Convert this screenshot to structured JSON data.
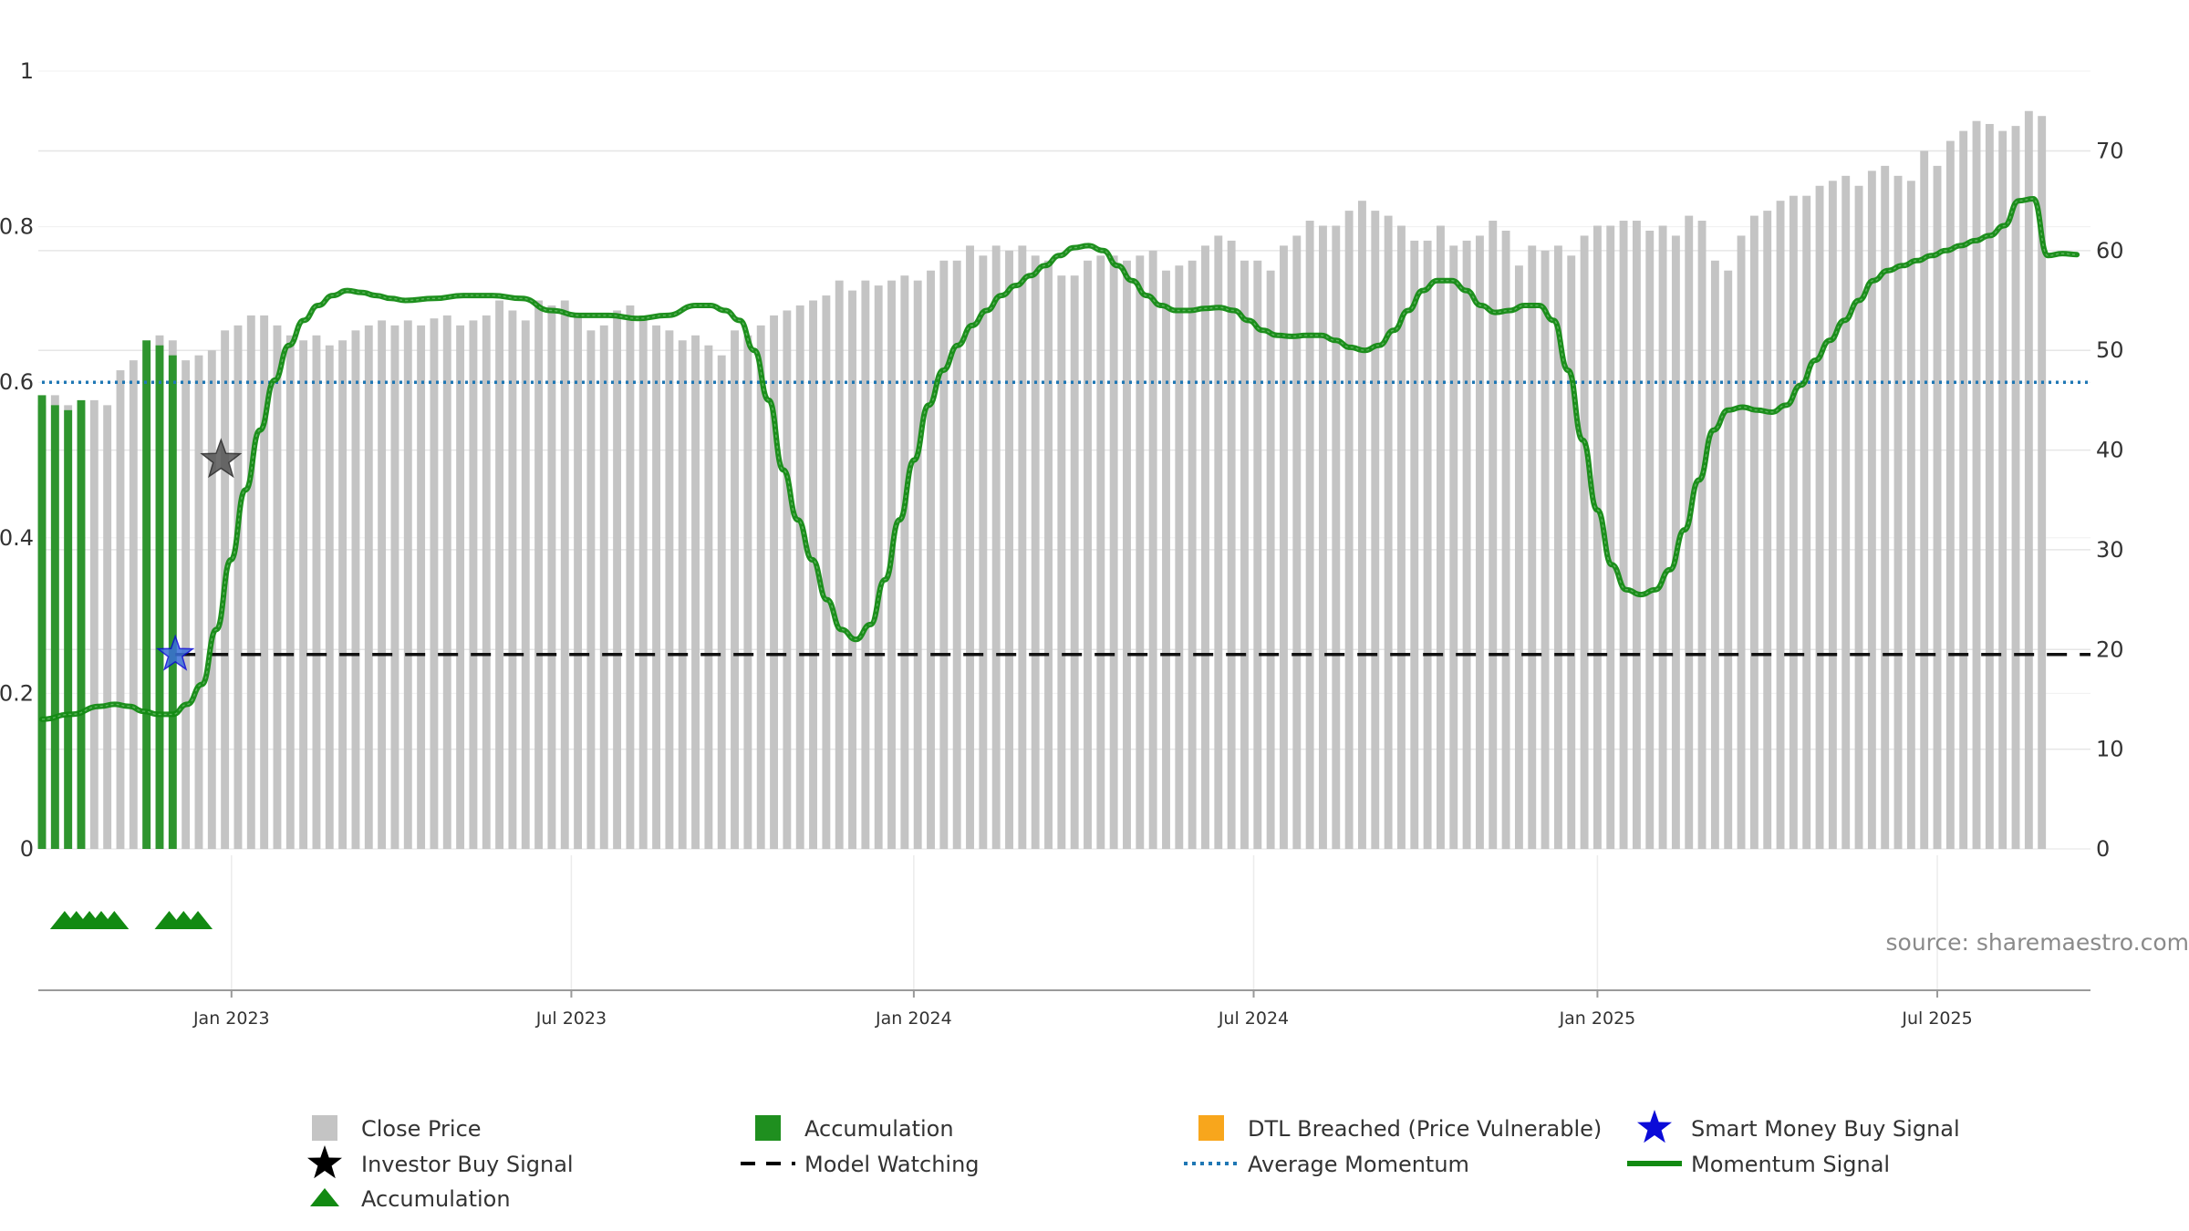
{
  "chart_data": {
    "type": "bar+line",
    "source": "source: sharemaestro.com",
    "left_axis": {
      "ticks": [
        0,
        0.2,
        0.4,
        0.6,
        0.8,
        1
      ],
      "labels": [
        "0",
        "0.2",
        "0.4",
        "0.6",
        "0.8",
        "1"
      ],
      "range": [
        0,
        1
      ]
    },
    "right_axis": {
      "ticks": [
        0,
        10,
        20,
        30,
        40,
        50,
        60,
        70
      ],
      "labels": [
        "0",
        "10",
        "20",
        "30",
        "40",
        "50",
        "60",
        "70"
      ],
      "range": [
        0,
        78
      ]
    },
    "x_axis": {
      "range_weeks": [
        0,
        157
      ],
      "labels": [
        "Jan 2023",
        "Jul 2023",
        "Jan 2024",
        "Jul 2024",
        "Jan 2025",
        "Jul 2025"
      ],
      "label_weeks": [
        14.5,
        40.5,
        66.7,
        92.7,
        119,
        145
      ]
    },
    "close_price": [
      44.5,
      45.5,
      44.5,
      44,
      45,
      44.5,
      48,
      49,
      50,
      51.5,
      51,
      49,
      49.5,
      50,
      52,
      52.5,
      53.5,
      53.5,
      52.5,
      51.5,
      51,
      51.5,
      50.5,
      51,
      52,
      52.5,
      53,
      52.5,
      53,
      52.5,
      53.2,
      53.5,
      52.5,
      53,
      53.5,
      55,
      54,
      53,
      55,
      54.5,
      55,
      53.5,
      52,
      52.5,
      54,
      54.5,
      53.5,
      52.5,
      52,
      51,
      51.5,
      50.5,
      49.5,
      52,
      51.5,
      52.5,
      53.5,
      54,
      54.5,
      55,
      55.5,
      57,
      56,
      57,
      56.5,
      57,
      57.5,
      57,
      58,
      59,
      59,
      60.5,
      59.5,
      60.5,
      60,
      60.5,
      59.5,
      59,
      57.5,
      57.5,
      59,
      59.5,
      59.5,
      59,
      59.5,
      60,
      58,
      58.5,
      59,
      60.5,
      61.5,
      61,
      59,
      59,
      58,
      60.5,
      61.5,
      63,
      62.5,
      62.5,
      64,
      65,
      64,
      63.5,
      62.5,
      61,
      61,
      62.5,
      60.5,
      61,
      61.5,
      63,
      62,
      58.5,
      60.5,
      60,
      60.5,
      59.5,
      61.5,
      62.5,
      62.5,
      63,
      63,
      62,
      62.5,
      61.5,
      63.5,
      63,
      59,
      58,
      61.5,
      63.5,
      64,
      65,
      65.5,
      65.5,
      66.5,
      67,
      67.5,
      66.5,
      68,
      68.5,
      67.5,
      67,
      70,
      68.5,
      71,
      72,
      73,
      72.7,
      72,
      72.5,
      74,
      73.5
    ],
    "accumulation_bars": [
      {
        "week": 0,
        "value": 45.5
      },
      {
        "week": 1,
        "value": 44.5
      },
      {
        "week": 2,
        "value": 44
      },
      {
        "week": 3,
        "value": 45
      },
      {
        "week": 8,
        "value": 51
      },
      {
        "week": 9,
        "value": 50.5
      },
      {
        "week": 10,
        "value": 49.5
      }
    ],
    "momentum_signal": [
      [
        0,
        13
      ],
      [
        2,
        13.5
      ],
      [
        4,
        14.3
      ],
      [
        5,
        14.5
      ],
      [
        6,
        14.3
      ],
      [
        7,
        13.8
      ],
      [
        8,
        13.5
      ],
      [
        9,
        13.5
      ],
      [
        10,
        14.5
      ],
      [
        11,
        16.5
      ],
      [
        12,
        22
      ],
      [
        13,
        29
      ],
      [
        14,
        36
      ],
      [
        15,
        42
      ],
      [
        16,
        47
      ],
      [
        17,
        50.5
      ],
      [
        18,
        53
      ],
      [
        19,
        54.5
      ],
      [
        20,
        55.5
      ],
      [
        21,
        56
      ],
      [
        22,
        55.8
      ],
      [
        23,
        55.5
      ],
      [
        24,
        55.2
      ],
      [
        25,
        55
      ],
      [
        27,
        55.2
      ],
      [
        29,
        55.5
      ],
      [
        31,
        55.5
      ],
      [
        33,
        55.2
      ],
      [
        35,
        54
      ],
      [
        37,
        53.5
      ],
      [
        39,
        53.5
      ],
      [
        41,
        53.2
      ],
      [
        43,
        53.5
      ],
      [
        45,
        54.5
      ],
      [
        46,
        54.5
      ],
      [
        47,
        54
      ],
      [
        48,
        53
      ],
      [
        49,
        50
      ],
      [
        50,
        45
      ],
      [
        51,
        38
      ],
      [
        52,
        33
      ],
      [
        53,
        29
      ],
      [
        54,
        25
      ],
      [
        55,
        22
      ],
      [
        56,
        21
      ],
      [
        57,
        22.5
      ],
      [
        58,
        27
      ],
      [
        59,
        33
      ],
      [
        60,
        39
      ],
      [
        61,
        44.5
      ],
      [
        62,
        48
      ],
      [
        63,
        50.5
      ],
      [
        64,
        52.5
      ],
      [
        65,
        54
      ],
      [
        66,
        55.5
      ],
      [
        67,
        56.5
      ],
      [
        68,
        57.5
      ],
      [
        69,
        58.5
      ],
      [
        70,
        59.5
      ],
      [
        71,
        60.3
      ],
      [
        72,
        60.5
      ],
      [
        73,
        60
      ],
      [
        74,
        58.5
      ],
      [
        75,
        57
      ],
      [
        76,
        55.5
      ],
      [
        77,
        54.5
      ],
      [
        78,
        54
      ],
      [
        79,
        54
      ],
      [
        80,
        54.2
      ],
      [
        81,
        54.3
      ],
      [
        82,
        54
      ],
      [
        83,
        53
      ],
      [
        84,
        52
      ],
      [
        85,
        51.5
      ],
      [
        86,
        51.4
      ],
      [
        87,
        51.5
      ],
      [
        88,
        51.5
      ],
      [
        89,
        51
      ],
      [
        90,
        50.3
      ],
      [
        91,
        50
      ],
      [
        92,
        50.5
      ],
      [
        93,
        52
      ],
      [
        94,
        54
      ],
      [
        95,
        56
      ],
      [
        96,
        57
      ],
      [
        97,
        57
      ],
      [
        98,
        56
      ],
      [
        99,
        54.5
      ],
      [
        100,
        53.8
      ],
      [
        101,
        54
      ],
      [
        102,
        54.5
      ],
      [
        103,
        54.5
      ],
      [
        104,
        53
      ],
      [
        105,
        48
      ],
      [
        106,
        41
      ],
      [
        107,
        34
      ],
      [
        108,
        28.5
      ],
      [
        109,
        26
      ],
      [
        110,
        25.5
      ],
      [
        111,
        26
      ],
      [
        112,
        28
      ],
      [
        113,
        32
      ],
      [
        114,
        37
      ],
      [
        115,
        42
      ],
      [
        116,
        44
      ],
      [
        117,
        44.3
      ],
      [
        118,
        44
      ],
      [
        119,
        43.8
      ],
      [
        120,
        44.5
      ],
      [
        121,
        46.5
      ],
      [
        122,
        49
      ],
      [
        123,
        51
      ],
      [
        124,
        53
      ],
      [
        125,
        55
      ],
      [
        126,
        57
      ],
      [
        127,
        58
      ],
      [
        128,
        58.5
      ],
      [
        129,
        59
      ],
      [
        130,
        59.5
      ],
      [
        131,
        60
      ],
      [
        132,
        60.5
      ],
      [
        133,
        61
      ],
      [
        134,
        61.5
      ],
      [
        135,
        62.5
      ],
      [
        136,
        65
      ],
      [
        137,
        65.2
      ],
      [
        138,
        59.5
      ],
      [
        139,
        59.7
      ],
      [
        140,
        59.6
      ]
    ],
    "momentum_signal_week_offset": 16.5,
    "average_momentum": 0.6,
    "model_watching": 0.25,
    "investor_buy_signals": [
      {
        "week": 13.7,
        "value": 0.5
      }
    ],
    "smart_money_buy_signals": [
      {
        "week": 10.2,
        "value": 0.25
      }
    ],
    "accumulation_markers_weeks": [
      0.2,
      1.1,
      2.1,
      3,
      4,
      8.2,
      9.3,
      10.4
    ],
    "legend": [
      {
        "label": "Close Price",
        "symbol": "square",
        "color": "#c4c4c4"
      },
      {
        "label": "Investor Buy Signal",
        "symbol": "star",
        "color": "#000000"
      },
      {
        "label": "Accumulation",
        "symbol": "triangle",
        "color": "#128a12"
      },
      {
        "label": "Accumulation",
        "symbol": "square",
        "color": "#1f8f1f"
      },
      {
        "label": "Model Watching",
        "symbol": "dash",
        "color": "#000000"
      },
      {
        "label": "DTL Breached (Price Vulnerable)",
        "symbol": "square",
        "color": "#f8a61c"
      },
      {
        "label": "Average Momentum",
        "symbol": "dot",
        "color": "#1f77b4"
      },
      {
        "label": "Smart Money Buy Signal",
        "symbol": "star",
        "color": "#0b0bd8"
      },
      {
        "label": "Momentum Signal",
        "symbol": "line",
        "color": "#128a12"
      }
    ]
  }
}
